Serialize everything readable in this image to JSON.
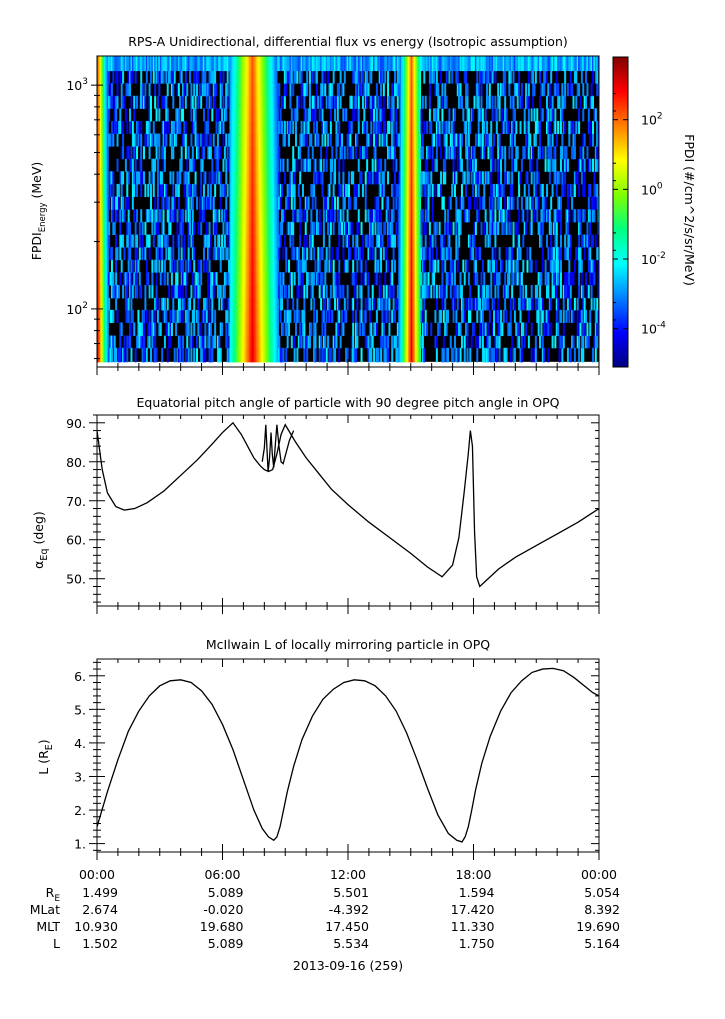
{
  "chart_data": [
    {
      "type": "heatmap",
      "title": "RPS-A Unidirectional, differential flux vs energy (Isotropic assumption)",
      "ylabel_main": "FPDI",
      "ylabel_sub": "Energy",
      "ylabel_unit": "(MeV)",
      "yscale": "log",
      "ylim": [
        55,
        1350
      ],
      "yticks": [
        {
          "value": 100,
          "base": "10",
          "exp": "2"
        },
        {
          "value": 1000,
          "base": "10",
          "exp": "3"
        }
      ],
      "colorbar": {
        "label": "FPDI (#/cm^2/s/sr/MeV)",
        "scale": "log",
        "range_exp": [
          -5.1,
          3.8
        ],
        "ticks": [
          {
            "base": "10",
            "exp": "2"
          },
          {
            "base": "10",
            "exp": "0"
          },
          {
            "base": "10",
            "exp": "-2"
          },
          {
            "base": "10",
            "exp": "-4"
          }
        ],
        "tick_exps": [
          2,
          0,
          -2,
          -4
        ],
        "colors": [
          "#00007f",
          "#0000ff",
          "#0080ff",
          "#00ffff",
          "#00ff80",
          "#80ff00",
          "#ffff00",
          "#ff8000",
          "#ff0000",
          "#7f0000"
        ]
      },
      "energy_channels": [
        58,
        67,
        76,
        87,
        99,
        112,
        128,
        146,
        166,
        189,
        215,
        245,
        279,
        318,
        362,
        412,
        469,
        534,
        608,
        692,
        788,
        897,
        1021,
        1162,
        1350
      ],
      "high_flux_bands": [
        {
          "hours": [
            0.0,
            0.9
          ],
          "peak_hour": 0.0
        },
        {
          "hours": [
            6.3,
            8.6
          ],
          "peak_hour": 7.4
        },
        {
          "hours": [
            14.3,
            15.4
          ],
          "peak_hour": 15.0
        }
      ],
      "background_flux_exp": -3.2
    },
    {
      "type": "line",
      "title": "Equatorial pitch angle of particle with 90 degree pitch angle in OPQ",
      "ylabel_main": "α",
      "ylabel_sub": "Eq",
      "ylabel_unit": "(deg)",
      "ylim": [
        43,
        92
      ],
      "yticks": [
        "50.",
        "60.",
        "70.",
        "80.",
        "90."
      ],
      "ytick_values": [
        50,
        60,
        70,
        80,
        90
      ],
      "series": [
        {
          "x": [
            0.0,
            0.25,
            0.5,
            0.9,
            1.3,
            1.8,
            2.4,
            3.2,
            4.0,
            4.8,
            5.5,
            6.0,
            6.5,
            6.9,
            7.2,
            7.5,
            7.8,
            8.0,
            8.2,
            8.4,
            8.6,
            8.8,
            9.0,
            9.5,
            10.0,
            10.6,
            11.2,
            12.0,
            13.0,
            14.0,
            15.0,
            15.8,
            16.5,
            17.0,
            17.3,
            17.55,
            17.75,
            17.85,
            17.95,
            18.05,
            18.15,
            18.3,
            18.6,
            19.2,
            20.0,
            21.0,
            22.0,
            23.0,
            24.0
          ],
          "y": [
            88.0,
            78.0,
            72.0,
            68.5,
            67.6,
            68.0,
            69.5,
            72.5,
            76.5,
            80.5,
            84.5,
            87.5,
            90.0,
            87.0,
            84.0,
            81.0,
            79.0,
            78.0,
            77.5,
            78.0,
            82.0,
            87.0,
            89.5,
            85.0,
            81.0,
            77.0,
            73.0,
            69.0,
            64.5,
            60.5,
            56.5,
            53.0,
            50.5,
            53.5,
            60.5,
            72.0,
            82.0,
            88.0,
            84.0,
            62.0,
            50.5,
            48.0,
            49.5,
            52.5,
            55.5,
            58.5,
            61.5,
            64.5,
            68.0
          ],
          "glitches": [
            {
              "x": [
                7.9,
                8.0,
                8.07,
                8.12,
                8.18,
                8.25,
                8.32,
                8.38,
                8.45,
                8.52,
                8.6,
                8.7,
                8.8,
                8.9,
                9.05,
                9.2,
                9.4
              ],
              "y": [
                80.0,
                83.5,
                89.5,
                84.0,
                77.5,
                81.0,
                87.5,
                82.0,
                78.5,
                84.0,
                89.5,
                84.0,
                80.0,
                79.5,
                82.5,
                85.5,
                88.0
              ]
            }
          ]
        }
      ]
    },
    {
      "type": "line",
      "title": "McIlwain L of locally mirroring particle in OPQ",
      "ylabel_main": "L (R",
      "ylabel_sub": "E",
      "ylabel_unit": ")",
      "ylim": [
        0.75,
        6.5
      ],
      "yticks": [
        "1.",
        "2.",
        "3.",
        "4.",
        "5.",
        "6."
      ],
      "ytick_values": [
        1,
        2,
        3,
        4,
        5,
        6
      ],
      "series": [
        {
          "x": [
            0.0,
            0.5,
            1.0,
            1.5,
            2.0,
            2.5,
            3.0,
            3.5,
            4.0,
            4.5,
            5.0,
            5.5,
            6.0,
            6.5,
            7.0,
            7.5,
            7.9,
            8.2,
            8.45,
            8.6,
            8.75,
            8.9,
            9.1,
            9.4,
            9.8,
            10.3,
            10.8,
            11.3,
            11.8,
            12.3,
            12.8,
            13.3,
            13.8,
            14.3,
            14.8,
            15.3,
            15.8,
            16.3,
            16.8,
            17.2,
            17.45,
            17.6,
            17.75,
            17.9,
            18.1,
            18.4,
            18.8,
            19.3,
            19.8,
            20.3,
            20.8,
            21.3,
            21.8,
            22.3,
            22.8,
            23.3,
            23.7,
            24.0
          ],
          "y": [
            1.5,
            2.55,
            3.5,
            4.35,
            4.95,
            5.4,
            5.7,
            5.85,
            5.88,
            5.8,
            5.55,
            5.15,
            4.55,
            3.8,
            2.9,
            2.0,
            1.45,
            1.2,
            1.1,
            1.2,
            1.5,
            1.95,
            2.55,
            3.3,
            4.1,
            4.8,
            5.3,
            5.6,
            5.8,
            5.88,
            5.85,
            5.7,
            5.4,
            4.95,
            4.3,
            3.5,
            2.65,
            1.85,
            1.3,
            1.1,
            1.05,
            1.2,
            1.5,
            1.95,
            2.6,
            3.4,
            4.2,
            4.95,
            5.5,
            5.85,
            6.1,
            6.2,
            6.22,
            6.15,
            5.95,
            5.7,
            5.5,
            5.4
          ]
        }
      ]
    }
  ],
  "x_axis": {
    "range_hours": [
      0,
      24
    ],
    "tick_hours": [
      0,
      6,
      12,
      18,
      24
    ],
    "tick_labels": [
      "00:00",
      "06:00",
      "12:00",
      "18:00",
      "00:00"
    ]
  },
  "ephemeris": {
    "rows": [
      {
        "label_main": "R",
        "label_sub": "E",
        "values": [
          "1.499",
          "5.089",
          "5.501",
          "1.594",
          "5.054"
        ]
      },
      {
        "label_main": "MLat",
        "label_sub": "",
        "values": [
          "2.674",
          "-0.020",
          "-4.392",
          "17.420",
          "8.392"
        ]
      },
      {
        "label_main": "MLT",
        "label_sub": "",
        "values": [
          "10.930",
          "19.680",
          "17.450",
          "11.330",
          "19.690"
        ]
      },
      {
        "label_main": "L",
        "label_sub": "",
        "values": [
          "1.502",
          "5.089",
          "5.534",
          "1.750",
          "5.164"
        ]
      }
    ]
  },
  "date_label": "2013-09-16 (259)"
}
